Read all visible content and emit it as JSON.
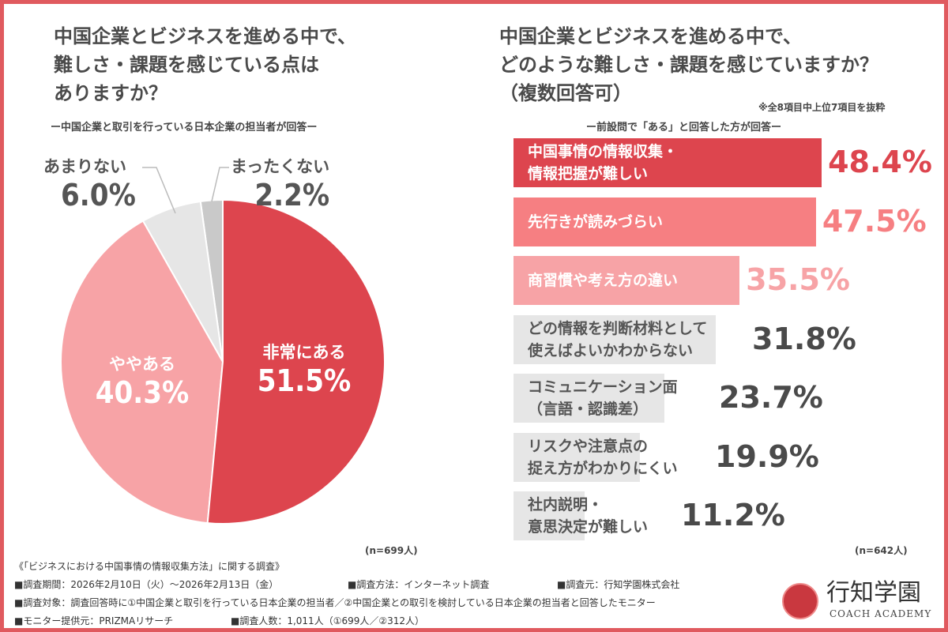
{
  "colors": {
    "border": "#e05a5f",
    "deep": "#dd454e",
    "mid": "#f67f82",
    "light": "#f7a3a6",
    "gray": "#e6e6e6",
    "dark_gray": "#c9c9c9"
  },
  "chart_data": [
    {
      "type": "pie",
      "title": "中国企業とビジネスを進める中で、難しさ・課題を感じている点はありますか？",
      "subtitle": "ー中国企業と取引を行っている日本企業の担当者が回答ー",
      "n": "(n=699人)",
      "slices": [
        {
          "label": "非常にある",
          "value": 51.5,
          "display": "51.5%"
        },
        {
          "label": "ややある",
          "value": 40.3,
          "display": "40.3%"
        },
        {
          "label": "あまりない",
          "value": 6.0,
          "display": "6.0%"
        },
        {
          "label": "まったくない",
          "value": 2.2,
          "display": "2.2%"
        }
      ]
    },
    {
      "type": "bar",
      "orientation": "horizontal",
      "title": "中国企業とビジネスを進める中で、どのような難しさ・課題を感じていますか？（複数回答可）",
      "note": "※全8項目中上位7項目を抜粋",
      "subtitle": "ー前設問で「ある」と回答した方が回答ー",
      "n": "(n=642人)",
      "categories": [
        "中国事情の情報収集・\n情報把握が難しい",
        "先行きが読みづらい",
        "商習慣や考え方の違い",
        "どの情報を判断材料として\n使えばよいかわからない",
        "コミュニケーション面\n（言語・認識差）",
        "リスクや注意点の\n捉え方がわかりにくい",
        "社内説明・\n意思決定が難しい"
      ],
      "values": [
        48.4,
        47.5,
        35.5,
        31.8,
        23.7,
        19.9,
        11.2
      ],
      "display": [
        "48.4%",
        "47.5%",
        "35.5%",
        "31.8%",
        "23.7%",
        "19.9%",
        "11.2%"
      ]
    }
  ],
  "left": {
    "title_lines": [
      "中国企業とビジネスを進める中で、",
      "難しさ・課題を感じている点は",
      "ありますか？"
    ]
  },
  "right": {
    "title_lines": [
      "中国企業とビジネスを進める中で、",
      "どのような難しさ・課題を感じていますか？",
      "（複数回答可）"
    ]
  },
  "footer": {
    "heading": "《「ビジネスにおける中国事情の情報収集方法」に関する調査》",
    "period": "■調査期間：2026年2月10日（火）～2026年2月13日（金）",
    "method": "■調査方法：インターネット調査",
    "source": "■調査元：行知学園株式会社",
    "target": "■調査対象：調査回答時に①中国企業と取引を行っている日本企業の担当者／②中国企業との取引を検討している日本企業の担当者と回答したモニター",
    "provider": "■モニター提供元：PRIZMAリサーチ",
    "count": "■調査人数：1,011人（①699人／②312人）"
  },
  "logo": {
    "name": "行知学園",
    "sub": "COACH ACADEMY"
  }
}
